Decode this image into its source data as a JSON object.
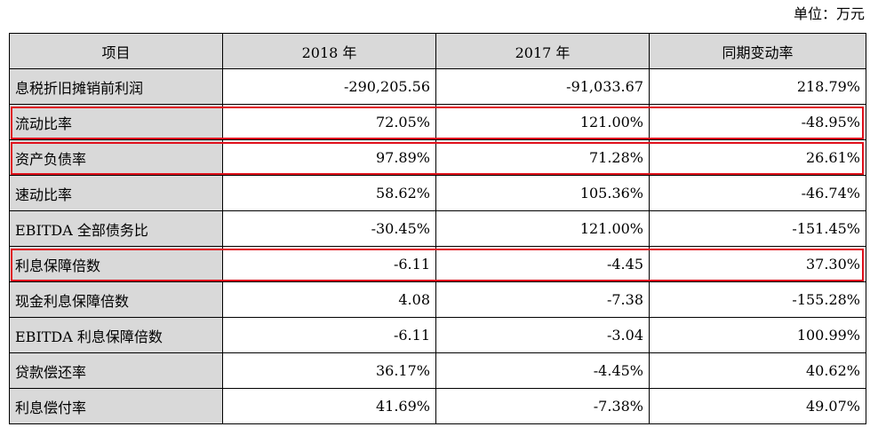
{
  "unit_label": "单位：万元",
  "header": [
    "项目",
    "2018 年",
    "2017 年",
    "同期变动率"
  ],
  "rows": [
    {
      "label": "息税折旧摊销前利润",
      "y2018": "-290,205.56",
      "y2017": "-91,033.67",
      "change": "218.79%"
    },
    {
      "label": "流动比率",
      "y2018": "72.05%",
      "y2017": "121.00%",
      "change": "-48.95%"
    },
    {
      "label": "资产负债率",
      "y2018": "97.89%",
      "y2017": "71.28%",
      "change": "26.61%"
    },
    {
      "label": "速动比率",
      "y2018": "58.62%",
      "y2017": "105.36%",
      "change": "-46.74%"
    },
    {
      "label": "EBITDA 全部债务比",
      "y2018": "-30.45%",
      "y2017": "121.00%",
      "change": "-151.45%"
    },
    {
      "label": "利息保障倍数",
      "y2018": "-6.11",
      "y2017": "-4.45",
      "change": "37.30%"
    },
    {
      "label": "现金利息保障倍数",
      "y2018": "4.08",
      "y2017": "-7.38",
      "change": "-155.28%"
    },
    {
      "label": "EBITDA 利息保障倍数",
      "y2018": "-6.11",
      "y2017": "-3.04",
      "change": "100.99%"
    },
    {
      "label": "贷款偿还率",
      "y2018": "36.17%",
      "y2017": "-4.45%",
      "change": "40.62%"
    },
    {
      "label": "利息偿付率",
      "y2018": "41.69%",
      "y2017": "-7.38%",
      "change": "49.07%"
    }
  ],
  "highlight_color": "#e0101c"
}
